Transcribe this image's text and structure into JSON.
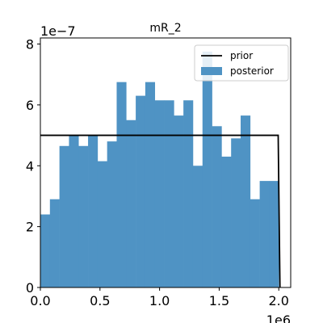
{
  "chart_data": {
    "type": "bar",
    "title": "mR_2",
    "xlabel": "",
    "ylabel": "",
    "x_multiplier": "1e6",
    "y_multiplier": "1e−7",
    "xlim": [
      0.0,
      2.1
    ],
    "ylim": [
      0,
      8.2
    ],
    "x_ticks": [
      {
        "value": 0.0,
        "label": "0.0"
      },
      {
        "value": 0.5,
        "label": "0.5"
      },
      {
        "value": 1.0,
        "label": "1.0"
      },
      {
        "value": 1.5,
        "label": "1.5"
      },
      {
        "value": 2.0,
        "label": "2.0"
      }
    ],
    "y_ticks": [
      {
        "value": 0,
        "label": "0"
      },
      {
        "value": 2,
        "label": "2"
      },
      {
        "value": 4,
        "label": "4"
      },
      {
        "value": 6,
        "label": "6"
      },
      {
        "value": 8,
        "label": "8"
      }
    ],
    "grid": false,
    "legend_position": "top-right",
    "series": [
      {
        "name": "prior",
        "kind": "line",
        "color": "#000000",
        "x": [
          0.0,
          1.995,
          2.01
        ],
        "y": [
          5.0,
          5.0,
          0.0
        ]
      },
      {
        "name": "posterior",
        "kind": "histogram",
        "color": "#4f93c4",
        "bin_start": 0.0,
        "bin_width": 0.08,
        "values": [
          2.4,
          2.9,
          4.65,
          5.0,
          4.65,
          5.0,
          4.15,
          4.8,
          6.75,
          5.5,
          6.3,
          6.75,
          6.15,
          6.15,
          5.65,
          6.15,
          4.0,
          7.75,
          5.3,
          4.3,
          4.9,
          5.65,
          2.9,
          3.5,
          3.5
        ]
      }
    ]
  }
}
